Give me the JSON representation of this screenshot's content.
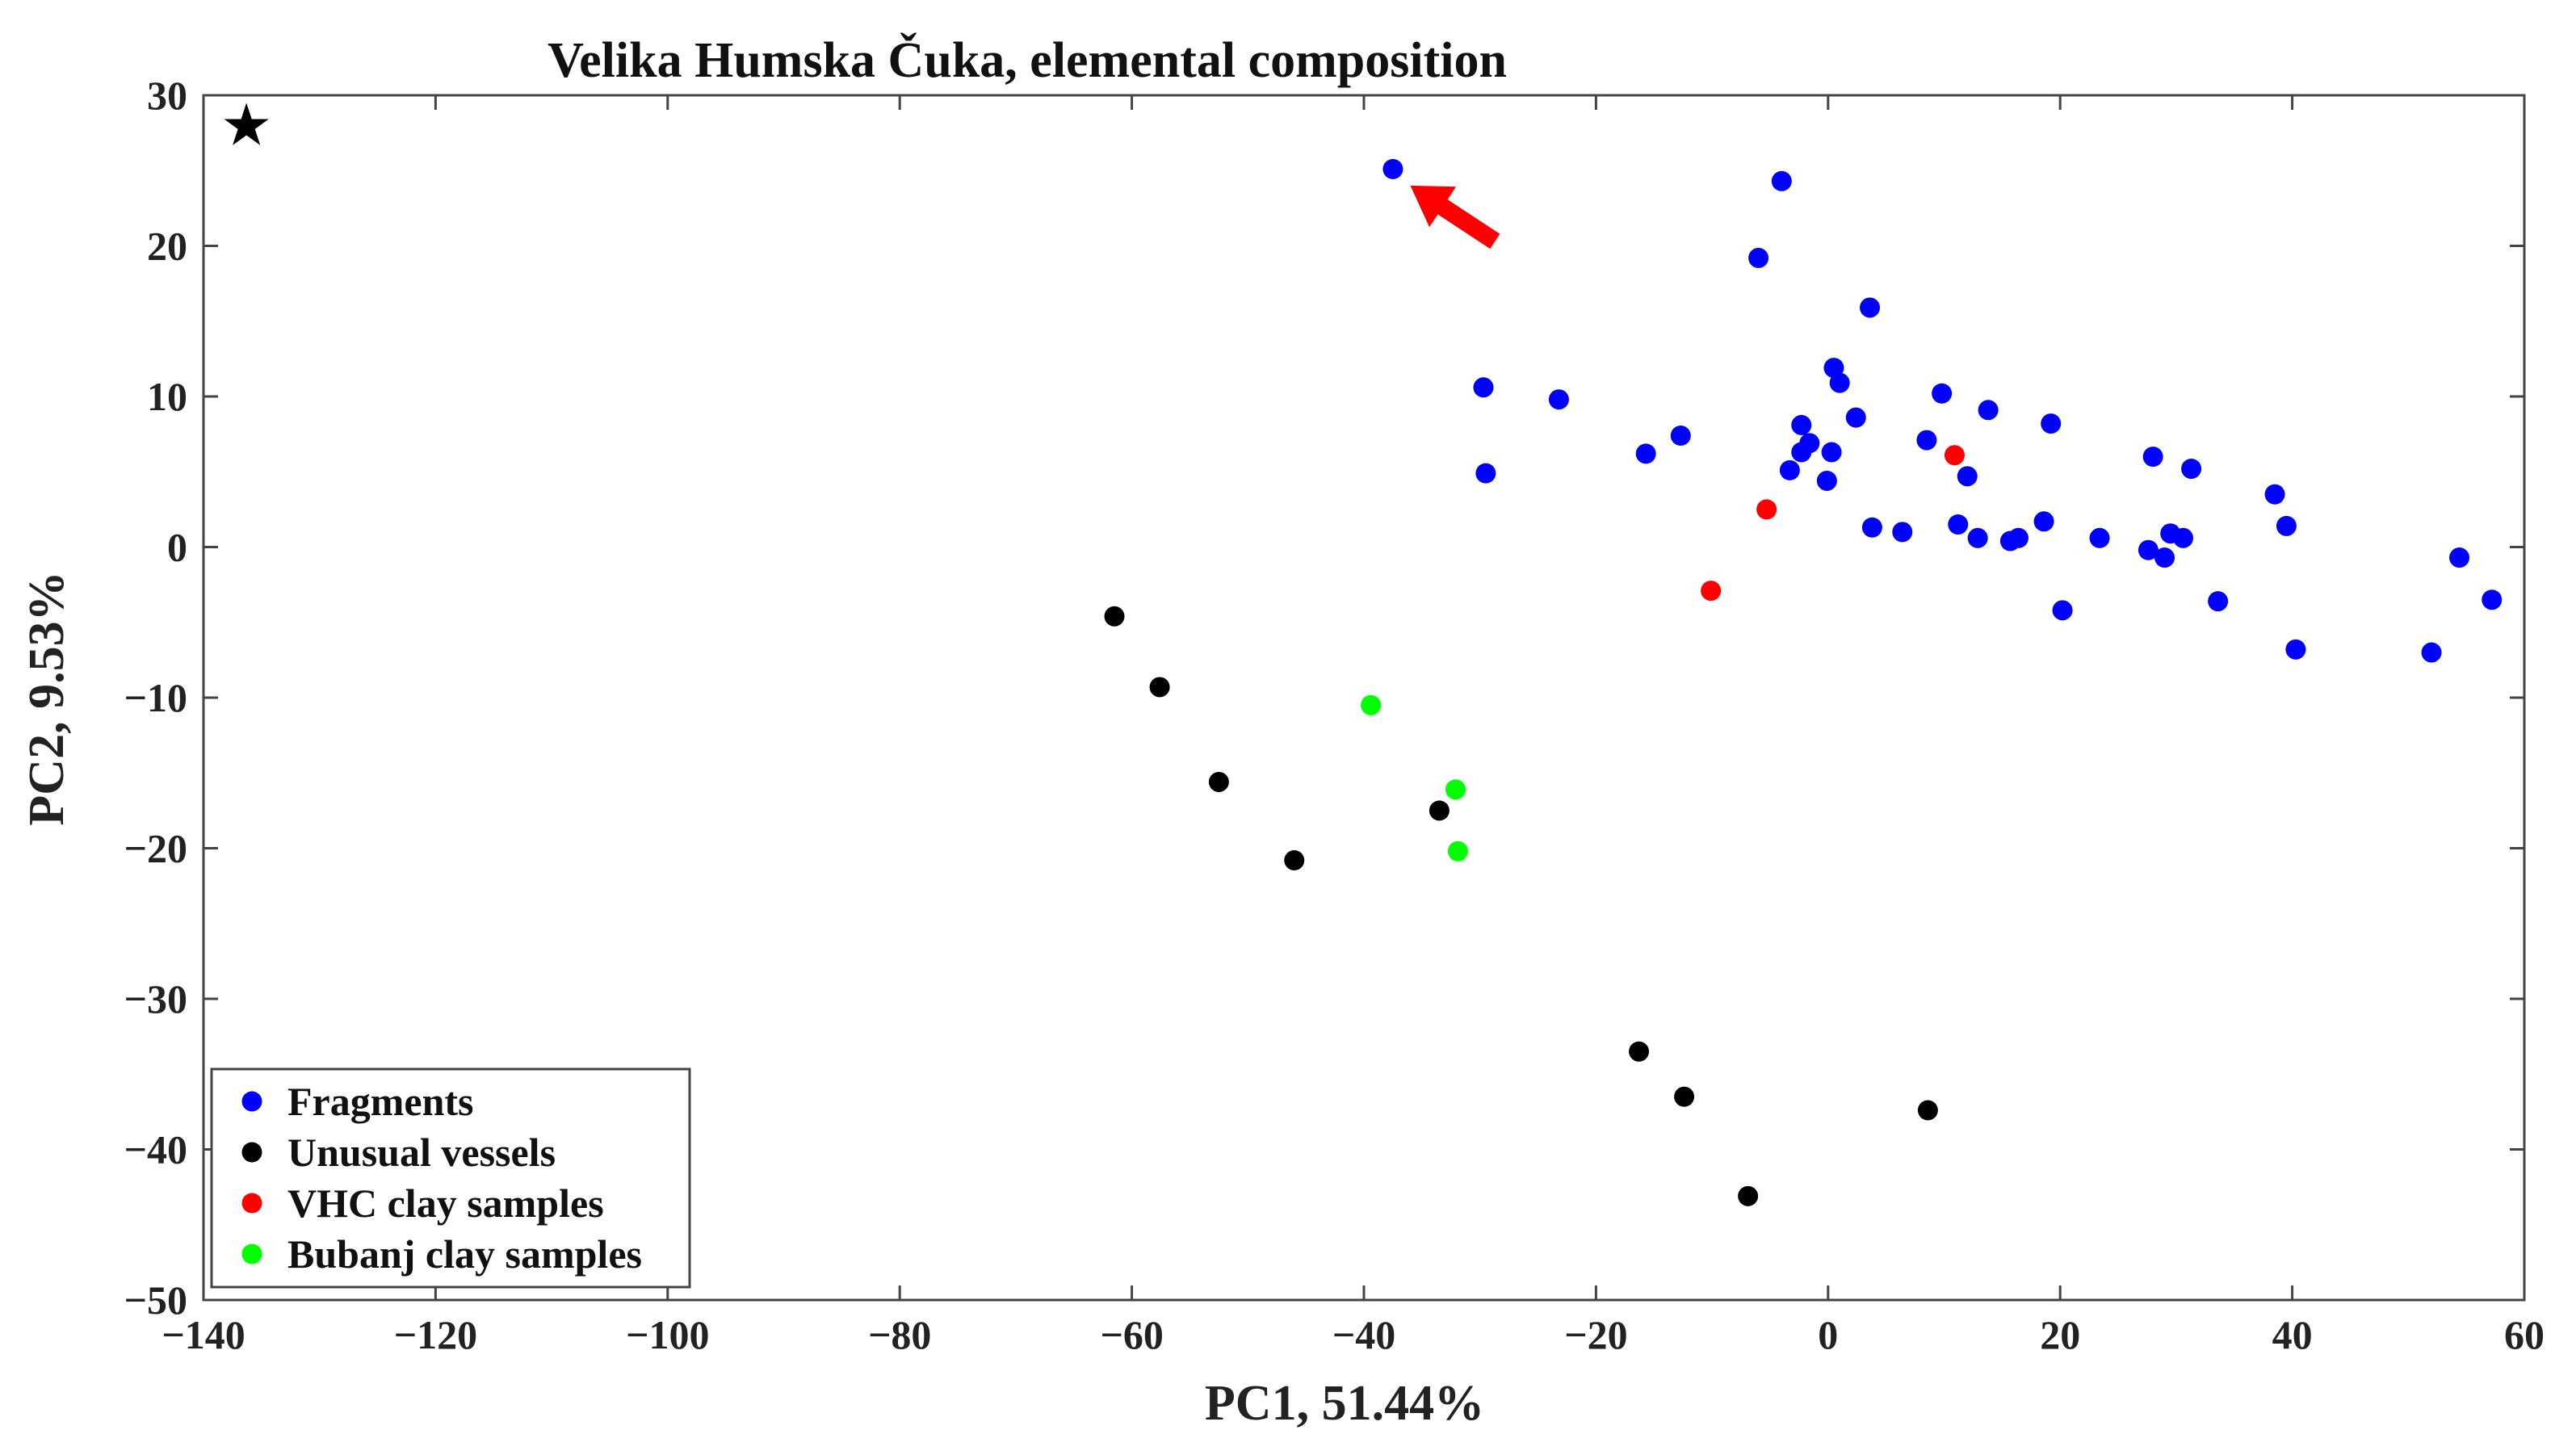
{
  "chart_data": {
    "type": "scatter",
    "title": "Velika Humska Čuka, elemental composition",
    "xlabel": "PC1, 51.44%",
    "ylabel": "PC2, 9.53%",
    "xlim": [
      -140,
      60
    ],
    "ylim": [
      -50,
      30
    ],
    "xticks": [
      -140,
      -120,
      -100,
      -80,
      -60,
      -40,
      -20,
      0,
      20,
      40,
      60
    ],
    "yticks": [
      -50,
      -40,
      -30,
      -20,
      -10,
      0,
      10,
      20,
      30
    ],
    "xtick_labels": [
      "−140",
      "−120",
      "−100",
      "−80",
      "−60",
      "−40",
      "−20",
      "0",
      "20",
      "40",
      "60"
    ],
    "ytick_labels": [
      "−50",
      "−40",
      "−30",
      "−20",
      "−10",
      "0",
      "10",
      "20",
      "30"
    ],
    "grid": false,
    "legend_position": "bottom-left",
    "series": [
      {
        "name": "Fragments",
        "color": "#0000ff",
        "points": [
          [
            -37.5,
            25.1
          ],
          [
            -4,
            24.3
          ],
          [
            -6,
            19.2
          ],
          [
            3.6,
            15.9
          ],
          [
            -29.7,
            10.6
          ],
          [
            -23.2,
            9.8
          ],
          [
            0.5,
            11.9
          ],
          [
            1,
            10.9
          ],
          [
            -29.5,
            4.9
          ],
          [
            -15.7,
            6.2
          ],
          [
            -12.7,
            7.4
          ],
          [
            -2.3,
            8.1
          ],
          [
            -2.3,
            6.3
          ],
          [
            -1.6,
            6.9
          ],
          [
            -3.3,
            5.1
          ],
          [
            2.4,
            8.6
          ],
          [
            0.3,
            6.3
          ],
          [
            -0.1,
            4.4
          ],
          [
            8.5,
            7.1
          ],
          [
            9.8,
            10.2
          ],
          [
            13.8,
            9.1
          ],
          [
            12,
            4.7
          ],
          [
            19.2,
            8.2
          ],
          [
            3.8,
            1.3
          ],
          [
            6.4,
            1
          ],
          [
            11.2,
            1.5
          ],
          [
            12.9,
            0.6
          ],
          [
            15.7,
            0.4
          ],
          [
            16.4,
            0.6
          ],
          [
            18.6,
            1.7
          ],
          [
            20.2,
            -4.2
          ],
          [
            23.4,
            0.6
          ],
          [
            28,
            6
          ],
          [
            31.3,
            5.2
          ],
          [
            27.6,
            -0.2
          ],
          [
            29,
            -0.7
          ],
          [
            29.5,
            0.9
          ],
          [
            30.6,
            0.6
          ],
          [
            33.6,
            -3.6
          ],
          [
            38.5,
            3.5
          ],
          [
            39.5,
            1.4
          ],
          [
            40.3,
            -6.8
          ],
          [
            52,
            -7
          ],
          [
            54.4,
            -0.7
          ],
          [
            57.2,
            -3.5
          ]
        ]
      },
      {
        "name": "Unusual vessels",
        "color": "#000000",
        "points": [
          [
            -61.5,
            -4.6
          ],
          [
            -57.6,
            -9.3
          ],
          [
            -52.5,
            -15.6
          ],
          [
            -46,
            -20.8
          ],
          [
            -33.5,
            -17.5
          ],
          [
            -16.3,
            -33.5
          ],
          [
            -12.4,
            -36.5
          ],
          [
            -6.9,
            -43.1
          ],
          [
            8.6,
            -37.4
          ]
        ]
      },
      {
        "name": "VHC clay samples",
        "color": "#ff0000",
        "points": [
          [
            -5.3,
            2.5
          ],
          [
            -10.1,
            -2.9
          ],
          [
            10.9,
            6.1
          ]
        ]
      },
      {
        "name": "Bubanj clay samples",
        "color": "#00ff00",
        "points": [
          [
            -39.4,
            -10.5
          ],
          [
            -32.1,
            -16.1
          ],
          [
            -31.9,
            -20.2
          ]
        ]
      }
    ],
    "annotations": [
      {
        "type": "star",
        "symbol": "★",
        "x": -136.3,
        "y": 28,
        "color": "#000000"
      },
      {
        "type": "arrow",
        "color": "#ff0000",
        "from": [
          -28.7,
          20.3
        ],
        "to": [
          -36,
          24
        ]
      }
    ]
  }
}
